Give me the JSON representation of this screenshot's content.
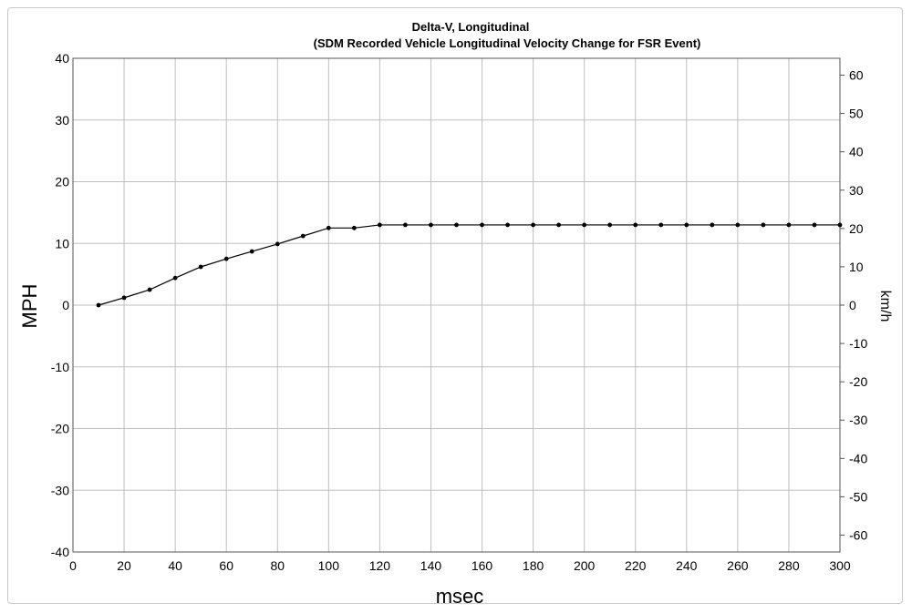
{
  "chart_data": {
    "type": "line",
    "title": "Delta-V, Longitudinal",
    "subtitle": "(SDM Recorded Vehicle Longitudinal Velocity Change for FSR Event)",
    "xlabel": "msec",
    "ylabel": "MPH",
    "y2label": "km/h",
    "xlim": [
      0,
      300
    ],
    "ylim": [
      -40,
      40
    ],
    "y2lim": [
      -64.4,
      64.4
    ],
    "x_ticks": [
      0,
      20,
      40,
      60,
      80,
      100,
      120,
      140,
      160,
      180,
      200,
      220,
      240,
      260,
      280,
      300
    ],
    "y_ticks": [
      -40,
      -30,
      -20,
      -10,
      0,
      10,
      20,
      30,
      40
    ],
    "y2_ticks": [
      -60,
      -50,
      -40,
      -30,
      -20,
      -10,
      0,
      10,
      20,
      30,
      40,
      50,
      60
    ],
    "grid": true,
    "line_color": "#000000",
    "grid_color": "#bfbfbf",
    "series": [
      {
        "x": [
          10,
          20,
          30,
          40,
          50,
          60,
          70,
          80,
          90,
          100,
          110,
          120,
          130,
          140,
          150,
          160,
          170,
          180,
          190,
          200,
          210,
          220,
          230,
          240,
          250,
          260,
          270,
          280,
          290,
          300
        ],
        "values": [
          0,
          1.2,
          2.5,
          4.4,
          6.2,
          7.5,
          8.7,
          9.9,
          11.2,
          12.5,
          12.5,
          13.0,
          13.0,
          13.0,
          13.0,
          13.0,
          13.0,
          13.0,
          13.0,
          13.0,
          13.0,
          13.0,
          13.0,
          13.0,
          13.0,
          13.0,
          13.0,
          13.0,
          13.0,
          13.0
        ]
      }
    ]
  }
}
